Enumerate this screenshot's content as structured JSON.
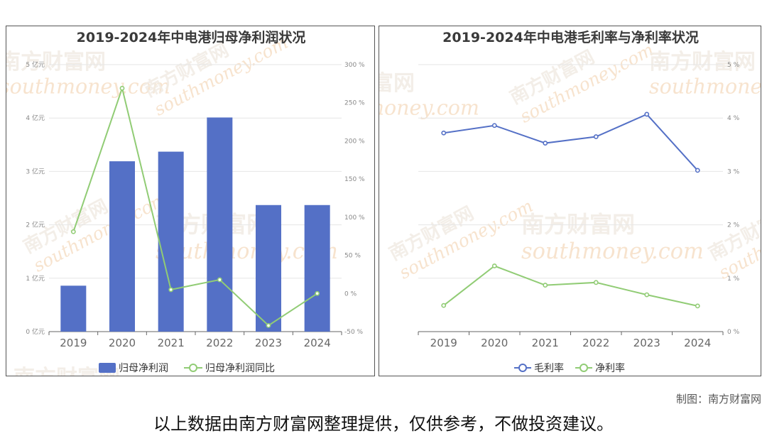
{
  "chart_data": [
    {
      "type": "bar",
      "title": "2019-2024年中电港归母净利润状况",
      "categories": [
        "2019",
        "2020",
        "2021",
        "2022",
        "2023",
        "2024"
      ],
      "left_ticks": [
        "0 亿元",
        "1 亿元",
        "2 亿元",
        "3 亿元",
        "4 亿元",
        "5 亿元"
      ],
      "right_ticks": [
        "-50 %",
        "0 %",
        "50 %",
        "100 %",
        "150 %",
        "200 %",
        "250 %",
        "300 %"
      ],
      "ylim": [
        0,
        5
      ],
      "y2lim": [
        -50,
        300
      ],
      "series": [
        {
          "name": "归母净利润",
          "type": "bar",
          "axis": "left",
          "color": "#5470c6",
          "values": [
            0.86,
            3.19,
            3.37,
            4.01,
            2.37,
            2.37
          ]
        },
        {
          "name": "归母净利润同比",
          "type": "line",
          "axis": "right",
          "color": "#91cc75",
          "values": [
            81,
            269,
            5,
            18,
            -42,
            0
          ]
        }
      ],
      "grid": true,
      "legend": "bottom-center"
    },
    {
      "type": "line",
      "title": "2019-2024年中电港毛利率与净利率状况",
      "categories": [
        "2019",
        "2020",
        "2021",
        "2022",
        "2023",
        "2024"
      ],
      "right_ticks": [
        "0 %",
        "1 %",
        "2 %",
        "3 %",
        "4 %",
        "5 %"
      ],
      "ylim": [
        0,
        5
      ],
      "series": [
        {
          "name": "毛利率",
          "color": "#5470c6",
          "values": [
            3.72,
            3.86,
            3.53,
            3.65,
            4.07,
            3.02
          ]
        },
        {
          "name": "净利率",
          "color": "#91cc75",
          "values": [
            0.49,
            1.23,
            0.87,
            0.92,
            0.69,
            0.48
          ]
        }
      ],
      "grid": true,
      "legend": "bottom-center"
    }
  ],
  "watermark": {
    "text": "南方财富网",
    "sub": "southmoney.com"
  },
  "footer": {
    "credit": "制图：南方财富网",
    "note": "以上数据由南方财富网整理提供，仅供参考，不做投资建议。"
  }
}
